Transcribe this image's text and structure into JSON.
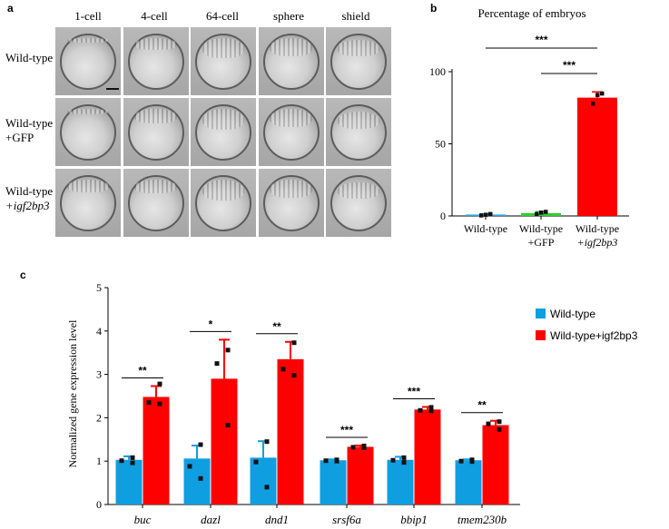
{
  "panels": {
    "a": "a",
    "b": "b",
    "c": "c"
  },
  "panel_a": {
    "stages": [
      "1-cell",
      "4-cell",
      "64-cell",
      "sphere",
      "shield"
    ],
    "rows": [
      {
        "line1": "Wild-type",
        "line2": ""
      },
      {
        "line1": "Wild-type",
        "line2": "+GFP"
      },
      {
        "line1": "Wild-type",
        "line2": "+igf2bp3"
      }
    ]
  },
  "chart_data": [
    {
      "type": "bar",
      "title": "Percentage of embryos",
      "categories": [
        {
          "line1": "Wild-type",
          "line2": ""
        },
        {
          "line1": "Wild-type",
          "line2": "+GFP"
        },
        {
          "line1": "Wild-type",
          "line2": "+igf2bp3"
        }
      ],
      "values": [
        1,
        2,
        82
      ],
      "errors": [
        0.5,
        1,
        4
      ],
      "points": [
        [
          0.5,
          1,
          1.5
        ],
        [
          1.5,
          2.5,
          3
        ],
        [
          78,
          84,
          85
        ]
      ],
      "colors": [
        "#29a8e0",
        "#33cc33",
        "#ff0000"
      ],
      "yticks": [
        0,
        50,
        100
      ],
      "ylim": [
        0,
        100
      ],
      "significance": [
        {
          "from": 0,
          "to": 2,
          "label": "***"
        },
        {
          "from": 1,
          "to": 2,
          "label": "***"
        }
      ]
    },
    {
      "type": "bar",
      "ylabel": "Normalized gene expression level",
      "ylim": [
        0,
        5
      ],
      "yticks": [
        0,
        1,
        2,
        3,
        4,
        5
      ],
      "categories": [
        "buc",
        "dazl",
        "dnd1",
        "srsf6a",
        "bbip1",
        "tmem230b"
      ],
      "series": [
        {
          "name": "Wild-type",
          "color": "#0f9ee0",
          "values": [
            1.03,
            1.06,
            1.08,
            1.02,
            1.03,
            1.02
          ],
          "errors": [
            0.08,
            0.3,
            0.38,
            0.02,
            0.07,
            0.02
          ],
          "points": [
            [
              1.08,
              1.01,
              0.96
            ],
            [
              1.38,
              0.88,
              0.6
            ],
            [
              1.45,
              0.98,
              0.4
            ],
            [
              1.03,
              1.01,
              1.0
            ],
            [
              1.08,
              1.02,
              0.97
            ],
            [
              1.03,
              1.0,
              0.99
            ]
          ]
        },
        {
          "name": "Wild-type+igf2bp3",
          "color": "#ff0000",
          "values": [
            2.48,
            2.9,
            3.35,
            1.33,
            2.19,
            1.83
          ],
          "errors": [
            0.25,
            0.9,
            0.4,
            0.03,
            0.06,
            0.1
          ],
          "points": [
            [
              2.78,
              2.35,
              2.32
            ],
            [
              3.56,
              3.25,
              1.83
            ],
            [
              3.73,
              3.12,
              2.98
            ],
            [
              1.35,
              1.32,
              1.31
            ],
            [
              2.24,
              2.17,
              2.16
            ],
            [
              1.91,
              1.86,
              1.73
            ]
          ]
        }
      ],
      "significance": [
        "**",
        "*",
        "**",
        "***",
        "***",
        "**"
      ]
    }
  ]
}
